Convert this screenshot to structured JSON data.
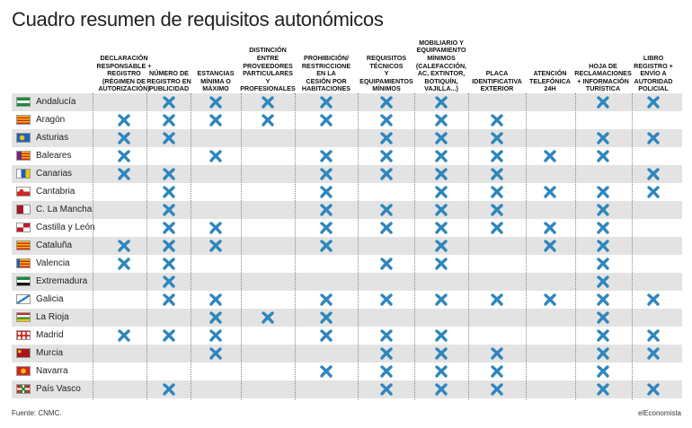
{
  "title": "Cuadro resumen de requisitos autonómicos",
  "columns": [
    "DECLARACIÓN\nRESPONSABLE +\nREGISTRO\n(RÉGIMEN DE\nAUTORIZACIÓN)",
    "NÚMERO DE\nREGISTRO EN\nPUBLICIDAD",
    "ESTANCIAS\nMÍNIMA O\nMÁXIMO",
    "DISTINCIÓN\nENTRE\nPROVEEDORES\nPARTICULARES Y\nPROFESIONALES",
    "PROHIBICIÓN/\nRESTRICCIONE\nEN LA\nCESIÓN POR\nHABITACIONES",
    "REQUISITOS\nTÉCNICOS\nY\nEQUIPAMIENTOS\nMÍNIMOS",
    "MOBILIARIO Y\nEQUIPAMIENTO\nMÍNIMOS\n(CALEFACCIÓN,\nAC, EXTINTOR,\nBOTIQUÍN,\nVAJILLA...)",
    "PLACA\nIDENTIFICATIVA\nEXTERIOR",
    "ATENCIÓN\nTELEFÓNICA\n24H",
    "HOJA DE\nRECLAMACIONES\n+ INFORMACIÓN\nTURÍSTICA",
    "LIBRO\nREGISTRO +\nENVÍO A\nAUTORIDAD\nPOLICIAL"
  ],
  "rows": [
    {
      "region": "Andalucía",
      "flag": "andalucia-flag",
      "marks": [
        0,
        1,
        1,
        1,
        1,
        1,
        1,
        0,
        0,
        1,
        1
      ]
    },
    {
      "region": "Aragón",
      "flag": "aragon-flag",
      "marks": [
        1,
        1,
        1,
        1,
        1,
        1,
        1,
        1,
        0,
        0,
        0
      ]
    },
    {
      "region": "Asturias",
      "flag": "asturias-flag",
      "marks": [
        1,
        1,
        0,
        0,
        0,
        1,
        1,
        1,
        0,
        1,
        1
      ]
    },
    {
      "region": "Baleares",
      "flag": "baleares-flag",
      "marks": [
        1,
        0,
        1,
        0,
        1,
        1,
        1,
        1,
        1,
        1,
        0
      ]
    },
    {
      "region": "Canarias",
      "flag": "canarias-flag",
      "marks": [
        1,
        1,
        0,
        0,
        1,
        1,
        1,
        1,
        0,
        0,
        1
      ]
    },
    {
      "region": "Cantabria",
      "flag": "cantabria-flag",
      "marks": [
        0,
        1,
        0,
        0,
        1,
        0,
        1,
        1,
        1,
        1,
        1
      ]
    },
    {
      "region": "C. La Mancha",
      "flag": "castilla-la-mancha-flag",
      "marks": [
        0,
        1,
        0,
        0,
        1,
        1,
        1,
        1,
        0,
        1,
        0
      ]
    },
    {
      "region": "Castilla y León",
      "flag": "castilla-y-leon-flag",
      "marks": [
        0,
        1,
        1,
        0,
        1,
        1,
        1,
        1,
        1,
        1,
        0
      ]
    },
    {
      "region": "Cataluña",
      "flag": "cataluna-flag",
      "marks": [
        1,
        1,
        1,
        0,
        1,
        0,
        1,
        0,
        1,
        1,
        0
      ]
    },
    {
      "region": "Valencia",
      "flag": "valencia-flag",
      "marks": [
        1,
        1,
        0,
        0,
        0,
        1,
        1,
        0,
        0,
        1,
        0
      ]
    },
    {
      "region": "Extremadura",
      "flag": "extremadura-flag",
      "marks": [
        0,
        1,
        0,
        0,
        0,
        0,
        0,
        0,
        0,
        1,
        0
      ]
    },
    {
      "region": "Galicia",
      "flag": "galicia-flag",
      "marks": [
        0,
        1,
        1,
        0,
        1,
        1,
        1,
        1,
        1,
        1,
        1
      ]
    },
    {
      "region": "La Rioja",
      "flag": "la-rioja-flag",
      "marks": [
        0,
        0,
        1,
        1,
        1,
        0,
        0,
        0,
        0,
        1,
        0
      ]
    },
    {
      "region": "Madrid",
      "flag": "madrid-flag",
      "marks": [
        1,
        1,
        1,
        0,
        1,
        1,
        1,
        0,
        0,
        1,
        1
      ]
    },
    {
      "region": "Murcia",
      "flag": "murcia-flag",
      "marks": [
        0,
        0,
        1,
        0,
        0,
        1,
        1,
        1,
        0,
        1,
        1
      ]
    },
    {
      "region": "Navarra",
      "flag": "navarra-flag",
      "marks": [
        0,
        0,
        0,
        0,
        1,
        1,
        1,
        1,
        0,
        1,
        0
      ]
    },
    {
      "region": "País Vasco",
      "flag": "pais-vasco-flag",
      "marks": [
        0,
        1,
        0,
        0,
        0,
        1,
        1,
        1,
        0,
        1,
        1
      ]
    }
  ],
  "mark_icon": "cross-mark-icon",
  "colors": {
    "mark": "#2f86bd",
    "row_shade": "#e3e3e3"
  },
  "footer": {
    "source": "Fuente: CNMC.",
    "brand": "elEconomista"
  }
}
